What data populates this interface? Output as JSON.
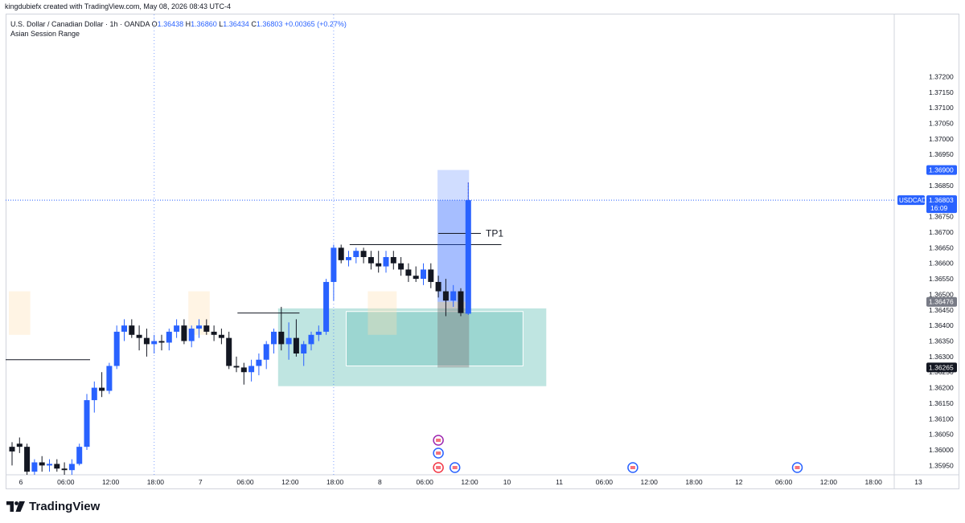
{
  "credit": "kingdubiefx created with TradingView.com, May 08, 2026 08:43 UTC-4",
  "legend": {
    "symbol": "U.S. Dollar / Canadian Dollar · 1h · OANDA",
    "o_key": "O",
    "o": "1.36438",
    "h_key": "H",
    "h": "1.36860",
    "l_key": "L",
    "l": "1.36434",
    "c_key": "C",
    "c": "1.36803",
    "change": "+0.00365 (+0.27%)",
    "indicator": "Asian Session Range"
  },
  "brand": "TradingView",
  "colors": {
    "bull": "#2962ff",
    "bear": "#131722",
    "demand_zone": "#80cbc4",
    "position_target": "#2962ff",
    "position_stop": "#808080",
    "grid_axis": "#d1d4dc"
  },
  "chart_data": {
    "type": "candlestick",
    "ylim": [
      1.3592,
      1.374
    ],
    "y_ticks": [
      "1.37200",
      "1.37150",
      "1.37100",
      "1.37050",
      "1.37000",
      "1.36950",
      "1.36850",
      "1.36750",
      "1.36700",
      "1.36650",
      "1.36600",
      "1.36550",
      "1.36500",
      "1.36450",
      "1.36400",
      "1.36350",
      "1.36300",
      "1.36250",
      "1.36200",
      "1.36150",
      "1.36100",
      "1.36050",
      "1.36000",
      "1.35950"
    ],
    "x_ticks": [
      {
        "label": "6",
        "i": 0
      },
      {
        "label": "06:00",
        "i": 6
      },
      {
        "label": "12:00",
        "i": 12
      },
      {
        "label": "18:00",
        "i": 18
      },
      {
        "label": "7",
        "i": 24
      },
      {
        "label": "06:00",
        "i": 30
      },
      {
        "label": "12:00",
        "i": 36
      },
      {
        "label": "18:00",
        "i": 42
      },
      {
        "label": "8",
        "i": 48
      },
      {
        "label": "06:00",
        "i": 54
      },
      {
        "label": "12:00",
        "i": 60
      },
      {
        "label": "10",
        "i": 65
      },
      {
        "label": "11",
        "i": 72
      },
      {
        "label": "06:00",
        "i": 78
      },
      {
        "label": "12:00",
        "i": 84
      },
      {
        "label": "18:00",
        "i": 90
      },
      {
        "label": "12",
        "i": 96
      },
      {
        "label": "06:00",
        "i": 102
      },
      {
        "label": "12:00",
        "i": 108
      },
      {
        "label": "18:00",
        "i": 114
      },
      {
        "label": "13",
        "i": 120
      }
    ],
    "candles": [
      [
        1.3601,
        1.36025,
        1.3595,
        1.35995
      ],
      [
        1.3602,
        1.3604,
        1.3599,
        1.3601
      ],
      [
        1.3601,
        1.3602,
        1.3592,
        1.3593
      ],
      [
        1.3593,
        1.3597,
        1.3592,
        1.3596
      ],
      [
        1.3596,
        1.3598,
        1.3593,
        1.3595
      ],
      [
        1.3595,
        1.3597,
        1.3593,
        1.35955
      ],
      [
        1.35955,
        1.3597,
        1.3593,
        1.3594
      ],
      [
        1.3594,
        1.3596,
        1.3592,
        1.35935
      ],
      [
        1.35935,
        1.3597,
        1.3592,
        1.35955
      ],
      [
        1.35955,
        1.3602,
        1.3595,
        1.3601
      ],
      [
        1.3601,
        1.3618,
        1.36,
        1.3616
      ],
      [
        1.3616,
        1.3622,
        1.3612,
        1.362
      ],
      [
        1.362,
        1.3625,
        1.3617,
        1.3619
      ],
      [
        1.3619,
        1.3628,
        1.3618,
        1.3627
      ],
      [
        1.3627,
        1.364,
        1.3626,
        1.3638
      ],
      [
        1.3638,
        1.3642,
        1.3635,
        1.364
      ],
      [
        1.364,
        1.3642,
        1.3636,
        1.3637
      ],
      [
        1.3637,
        1.364,
        1.3632,
        1.3636
      ],
      [
        1.3636,
        1.3639,
        1.363,
        1.3634
      ],
      [
        1.3634,
        1.3637,
        1.3631,
        1.3635
      ],
      [
        1.3635,
        1.3637,
        1.3632,
        1.36345
      ],
      [
        1.36345,
        1.3639,
        1.3632,
        1.3638
      ],
      [
        1.3638,
        1.3642,
        1.3636,
        1.364
      ],
      [
        1.364,
        1.3642,
        1.3634,
        1.3635
      ],
      [
        1.3635,
        1.364,
        1.3633,
        1.3639
      ],
      [
        1.3639,
        1.3642,
        1.3636,
        1.364
      ],
      [
        1.364,
        1.3642,
        1.3637,
        1.3638
      ],
      [
        1.3638,
        1.364,
        1.3635,
        1.3637
      ],
      [
        1.3637,
        1.3639,
        1.3634,
        1.3636
      ],
      [
        1.3636,
        1.3638,
        1.3626,
        1.3627
      ],
      [
        1.3627,
        1.363,
        1.3625,
        1.36265
      ],
      [
        1.36265,
        1.3628,
        1.3621,
        1.3625
      ],
      [
        1.3625,
        1.3629,
        1.3622,
        1.3627
      ],
      [
        1.3627,
        1.3631,
        1.3624,
        1.3629
      ],
      [
        1.3629,
        1.3635,
        1.3626,
        1.3634
      ],
      [
        1.3634,
        1.3639,
        1.3631,
        1.3638
      ],
      [
        1.3638,
        1.3646,
        1.3632,
        1.3634
      ],
      [
        1.3634,
        1.3641,
        1.3629,
        1.3636
      ],
      [
        1.3636,
        1.3642,
        1.363,
        1.3631
      ],
      [
        1.3631,
        1.3635,
        1.3627,
        1.3634
      ],
      [
        1.3634,
        1.3638,
        1.3632,
        1.3637
      ],
      [
        1.3637,
        1.364,
        1.3635,
        1.3638
      ],
      [
        1.3638,
        1.3655,
        1.3637,
        1.3654
      ],
      [
        1.3654,
        1.3666,
        1.3648,
        1.3665
      ],
      [
        1.3665,
        1.3666,
        1.366,
        1.3661
      ],
      [
        1.3661,
        1.3664,
        1.3659,
        1.3662
      ],
      [
        1.3662,
        1.3665,
        1.366,
        1.3664
      ],
      [
        1.3664,
        1.3665,
        1.366,
        1.3662
      ],
      [
        1.3662,
        1.3664,
        1.3658,
        1.366
      ],
      [
        1.366,
        1.3664,
        1.3657,
        1.3659
      ],
      [
        1.3659,
        1.3664,
        1.3657,
        1.3662
      ],
      [
        1.3662,
        1.3664,
        1.3658,
        1.366
      ],
      [
        1.366,
        1.3662,
        1.3656,
        1.3658
      ],
      [
        1.3658,
        1.366,
        1.3654,
        1.3656
      ],
      [
        1.3656,
        1.3659,
        1.3654,
        1.3655
      ],
      [
        1.3655,
        1.366,
        1.3653,
        1.3658
      ],
      [
        1.3658,
        1.366,
        1.3652,
        1.3654
      ],
      [
        1.3654,
        1.3656,
        1.3649,
        1.3651
      ],
      [
        1.3651,
        1.3655,
        1.3643,
        1.3648
      ],
      [
        1.3648,
        1.3653,
        1.3646,
        1.3651
      ],
      [
        1.3651,
        1.3652,
        1.3643,
        1.3644
      ],
      [
        1.36438,
        1.3686,
        1.36434,
        1.36803
      ]
    ],
    "current_price": "1.36803",
    "price_tags": [
      "1.36900",
      "1.36476",
      "1.36265"
    ],
    "symbol_tag": "USDCAD",
    "countdown": "16:09",
    "annotations": [
      "TP1"
    ],
    "tp1_level": 1.3666,
    "zone_outer": {
      "from_i": 36,
      "to_i": 71,
      "top": 1.36455,
      "bottom": 1.36205
    },
    "zone_inner": {
      "from_i": 45,
      "to_i": 68,
      "top": 1.36445,
      "bottom": 1.3627
    },
    "position": {
      "from_i": 57,
      "to_i": 61,
      "target": 1.369,
      "entry": 1.36476,
      "stop": 1.36265
    },
    "resistance_lines": [
      {
        "from_i": 0,
        "to_i": 10,
        "y": 1.3629
      },
      {
        "from_i": 31,
        "to_i": 38,
        "y": 1.3644
      },
      {
        "from_i": 46,
        "to_i": 65,
        "y": 1.3666
      }
    ]
  }
}
